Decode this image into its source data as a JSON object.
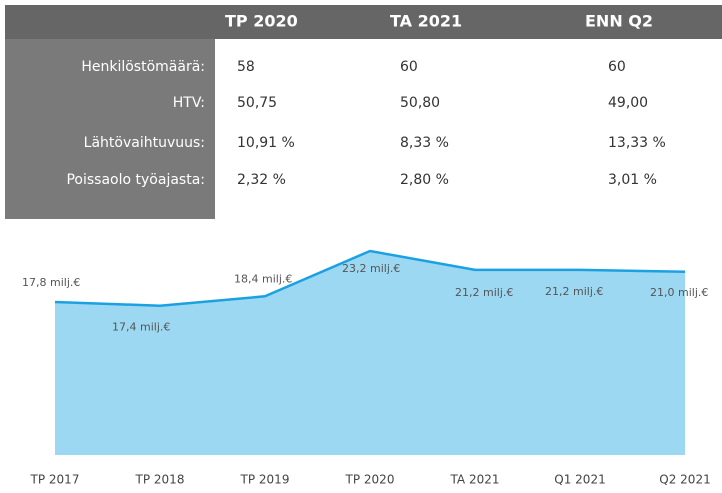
{
  "table": {
    "header": [
      "TP 2020",
      "TA 2021",
      "ENN Q2"
    ],
    "rows": [
      [
        "Henkilöstömäärä:",
        "58",
        "60",
        "60"
      ],
      [
        "HTV:",
        "50,75",
        "50,80",
        "49,00"
      ],
      [
        "Lähtövaihtuvuus:",
        "10,91 %",
        "8,33 %",
        "13,33 %"
      ],
      [
        "Poissaolo työajasta:",
        "2,32 %",
        "2,80 %",
        "3,01 %"
      ]
    ]
  },
  "chart_data": {
    "type": "area",
    "categories": [
      "TP 2017",
      "TP 2018",
      "TP 2019",
      "TP 2020",
      "TA 2021",
      "Q1 2021",
      "Q2 2021"
    ],
    "values": [
      17.8,
      17.4,
      18.4,
      23.2,
      21.2,
      21.2,
      21.0
    ],
    "value_labels": [
      "17,8 milj.€",
      "17,4 milj.€",
      "18,4 milj.€",
      "23,2 milj.€",
      "21,2 milj.€",
      "21,2 milj.€",
      "21,0 milj.€"
    ],
    "color": "#1ba1e2",
    "fill": "#9dd8f2"
  }
}
